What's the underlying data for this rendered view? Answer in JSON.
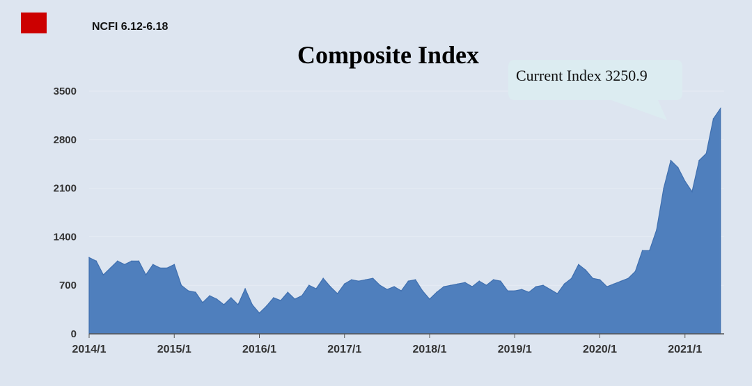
{
  "header": {
    "label": "NCFI 6.12-6.18",
    "flag_color": "#cc0000"
  },
  "callout": {
    "text": "Current Index 3250.9"
  },
  "colors": {
    "background": "#dde5f0",
    "area_fill": "#4f7fbd",
    "area_line": "#3f6faf",
    "callout_fill": "#dcecf1"
  },
  "chart_data": {
    "type": "area",
    "title": "Composite Index",
    "xlabel": "",
    "ylabel": "",
    "ylim": [
      0,
      3500
    ],
    "yticks": [
      0,
      700,
      1400,
      2100,
      2800,
      3500
    ],
    "xticks": [
      "2014/1",
      "2015/1",
      "2016/1",
      "2017/1",
      "2018/1",
      "2019/1",
      "2020/1",
      "2021/1"
    ],
    "grid": true,
    "x": [
      "2014/1",
      "2014/2",
      "2014/3",
      "2014/4",
      "2014/5",
      "2014/6",
      "2014/7",
      "2014/8",
      "2014/9",
      "2014/10",
      "2014/11",
      "2014/12",
      "2015/1",
      "2015/2",
      "2015/3",
      "2015/4",
      "2015/5",
      "2015/6",
      "2015/7",
      "2015/8",
      "2015/9",
      "2015/10",
      "2015/11",
      "2015/12",
      "2016/1",
      "2016/2",
      "2016/3",
      "2016/4",
      "2016/5",
      "2016/6",
      "2016/7",
      "2016/8",
      "2016/9",
      "2016/10",
      "2016/11",
      "2016/12",
      "2017/1",
      "2017/2",
      "2017/3",
      "2017/4",
      "2017/5",
      "2017/6",
      "2017/7",
      "2017/8",
      "2017/9",
      "2017/10",
      "2017/11",
      "2017/12",
      "2018/1",
      "2018/2",
      "2018/3",
      "2018/4",
      "2018/5",
      "2018/6",
      "2018/7",
      "2018/8",
      "2018/9",
      "2018/10",
      "2018/11",
      "2018/12",
      "2019/1",
      "2019/2",
      "2019/3",
      "2019/4",
      "2019/5",
      "2019/6",
      "2019/7",
      "2019/8",
      "2019/9",
      "2019/10",
      "2019/11",
      "2019/12",
      "2020/1",
      "2020/2",
      "2020/3",
      "2020/4",
      "2020/5",
      "2020/6",
      "2020/7",
      "2020/8",
      "2020/9",
      "2020/10",
      "2020/11",
      "2020/12",
      "2021/1",
      "2021/2",
      "2021/3",
      "2021/4",
      "2021/5",
      "2021/6"
    ],
    "values": [
      1100,
      1050,
      850,
      950,
      1050,
      1000,
      1050,
      1050,
      850,
      1000,
      950,
      950,
      1000,
      700,
      620,
      600,
      450,
      550,
      500,
      420,
      520,
      420,
      650,
      420,
      300,
      400,
      520,
      480,
      600,
      500,
      550,
      700,
      650,
      800,
      680,
      580,
      720,
      780,
      760,
      780,
      800,
      700,
      640,
      680,
      620,
      760,
      780,
      620,
      500,
      600,
      680,
      700,
      720,
      740,
      680,
      760,
      700,
      780,
      760,
      620,
      620,
      640,
      600,
      680,
      700,
      640,
      580,
      720,
      800,
      1000,
      920,
      800,
      780,
      680,
      720,
      760,
      800,
      900,
      1200,
      1200,
      1500,
      2100,
      2500,
      2400,
      2200,
      2050,
      2500,
      2600,
      3100,
      3250
    ]
  }
}
